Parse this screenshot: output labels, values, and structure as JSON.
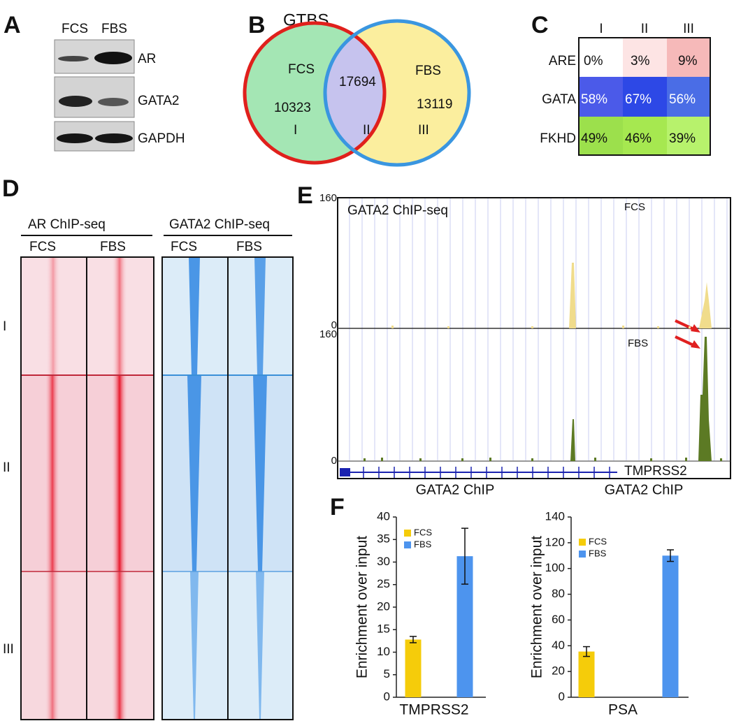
{
  "panel_labels": [
    "A",
    "B",
    "C",
    "D",
    "E",
    "F"
  ],
  "blot": {
    "lanes": [
      "FCS",
      "FBS"
    ],
    "bands": [
      "AR",
      "GATA2",
      "GAPDH"
    ]
  },
  "venn": {
    "title": "GTBS",
    "sets": [
      "FCS",
      "FBS"
    ],
    "counts": [
      10323,
      17694,
      13119
    ],
    "regions": [
      "I",
      "II",
      "III"
    ]
  },
  "motif_table": {
    "columns": [
      "I",
      "II",
      "III"
    ],
    "rows": [
      {
        "label": "ARE",
        "cells": [
          "0%",
          "3%",
          "9%"
        ]
      },
      {
        "label": "GATA",
        "cells": [
          "58%",
          "67%",
          "56%"
        ]
      },
      {
        "label": "FKHD",
        "cells": [
          "49%",
          "46%",
          "39%"
        ]
      }
    ]
  },
  "heatmap": {
    "groups": [
      "AR ChIP-seq",
      "GATA2 ChIP-seq"
    ],
    "conditions": [
      "FCS",
      "FBS",
      "FCS",
      "FBS"
    ],
    "clusters": [
      "I",
      "II",
      "III"
    ]
  },
  "tracks": {
    "title": "GATA2 ChIP-seq",
    "tracks": [
      {
        "name": "FCS",
        "max": 160,
        "min": 0
      },
      {
        "name": "FBS",
        "max": 160,
        "min": 0
      }
    ],
    "gene": "TMPRSS2"
  },
  "chart_data": [
    {
      "type": "bar",
      "title": "GATA2 ChIP",
      "ylabel": "Enrichment over input",
      "categories": [
        "TMPRSS2"
      ],
      "series": [
        {
          "name": "FCS",
          "color": "#f5cc0a",
          "values": [
            12.8
          ],
          "errors": [
            0.7
          ]
        },
        {
          "name": "FBS",
          "color": "#4d94ee",
          "values": [
            31.3
          ],
          "errors": [
            6.2
          ]
        }
      ],
      "ylim": [
        0,
        40
      ],
      "yticks": [
        0,
        5,
        10,
        15,
        20,
        25,
        30,
        35,
        40
      ]
    },
    {
      "type": "bar",
      "title": "GATA2 ChIP",
      "ylabel": "Enrichment over input",
      "categories": [
        "PSA"
      ],
      "series": [
        {
          "name": "FCS",
          "color": "#f5cc0a",
          "values": [
            35.5
          ],
          "errors": [
            3.8
          ]
        },
        {
          "name": "FBS",
          "color": "#4d94ee",
          "values": [
            110
          ],
          "errors": [
            4.5
          ]
        }
      ],
      "ylim": [
        0,
        140
      ],
      "yticks": [
        0,
        20,
        40,
        60,
        80,
        100,
        120,
        140
      ]
    }
  ]
}
